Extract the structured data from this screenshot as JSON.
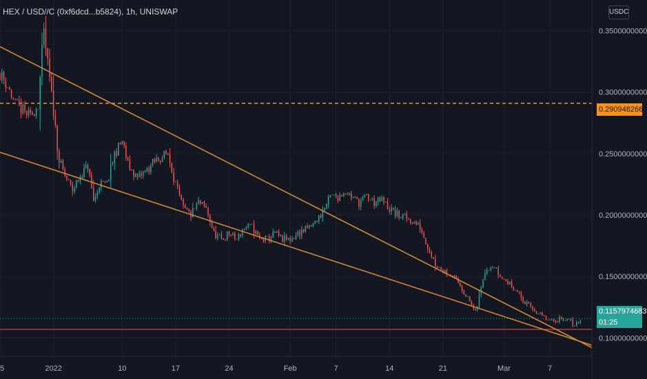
{
  "header": {
    "symbol_title": "HEX / USD//C (0xf6dcd...b5824), 1h, UNISWAP",
    "currency_button": "USDC"
  },
  "price_tags": {
    "dashed_level": "0.2909482661",
    "last_price": "0.1157974683",
    "countdown": "01:25"
  },
  "colors": {
    "background": "#131722",
    "up": "#26a69a",
    "down": "#ef5350",
    "trendline": "#d4892a",
    "dashed_level": "#f7931a",
    "grid": "#1e222d",
    "axis_text": "#b2b5be"
  },
  "chart_data": {
    "type": "candlestick",
    "y_axis": {
      "ticks": [
        {
          "value": 0.35,
          "label": "0.3500000000"
        },
        {
          "value": 0.3,
          "label": "0.3000000000"
        },
        {
          "value": 0.25,
          "label": "0.2500000000"
        },
        {
          "value": 0.2,
          "label": "0.2000000000"
        },
        {
          "value": 0.15,
          "label": "0.1500000000"
        },
        {
          "value": 0.1,
          "label": "0.1000000000"
        }
      ],
      "range": [
        0.085,
        0.375
      ]
    },
    "x_axis": {
      "ticks": [
        {
          "day": 0,
          "label": "25"
        },
        {
          "day": 7,
          "label": "2022"
        },
        {
          "day": 16,
          "label": "10"
        },
        {
          "day": 23,
          "label": "17"
        },
        {
          "day": 30,
          "label": "24"
        },
        {
          "day": 38,
          "label": "Feb"
        },
        {
          "day": 44,
          "label": "7"
        },
        {
          "day": 51,
          "label": "14"
        },
        {
          "day": 58,
          "label": "21"
        },
        {
          "day": 66,
          "label": "Mar"
        },
        {
          "day": 72,
          "label": "7"
        }
      ],
      "range": [
        0,
        77.5
      ]
    },
    "series": [
      {
        "style": "candles",
        "close_points": [
          [
            0,
            0.315
          ],
          [
            1,
            0.305
          ],
          [
            2,
            0.29
          ],
          [
            3,
            0.285
          ],
          [
            4,
            0.28
          ],
          [
            5,
            0.29
          ],
          [
            5.7,
            0.35
          ],
          [
            6.3,
            0.32
          ],
          [
            7,
            0.285
          ],
          [
            7.7,
            0.245
          ],
          [
            8.5,
            0.232
          ],
          [
            9.5,
            0.22
          ],
          [
            10.5,
            0.232
          ],
          [
            11.5,
            0.24
          ],
          [
            12.3,
            0.21
          ],
          [
            13,
            0.225
          ],
          [
            14,
            0.225
          ],
          [
            15,
            0.25
          ],
          [
            16,
            0.26
          ],
          [
            16.8,
            0.24
          ],
          [
            18,
            0.23
          ],
          [
            19,
            0.235
          ],
          [
            20.5,
            0.245
          ],
          [
            22,
            0.25
          ],
          [
            23.2,
            0.22
          ],
          [
            24,
            0.205
          ],
          [
            25,
            0.2
          ],
          [
            26,
            0.21
          ],
          [
            27,
            0.205
          ],
          [
            28,
            0.185
          ],
          [
            29,
            0.18
          ],
          [
            30,
            0.185
          ],
          [
            31,
            0.18
          ],
          [
            32,
            0.19
          ],
          [
            33,
            0.19
          ],
          [
            34,
            0.18
          ],
          [
            35,
            0.18
          ],
          [
            36,
            0.185
          ],
          [
            37,
            0.18
          ],
          [
            38,
            0.18
          ],
          [
            39,
            0.185
          ],
          [
            40,
            0.188
          ],
          [
            41,
            0.192
          ],
          [
            42,
            0.2
          ],
          [
            43.3,
            0.215
          ],
          [
            44.3,
            0.215
          ],
          [
            45.2,
            0.22
          ],
          [
            46,
            0.215
          ],
          [
            47,
            0.21
          ],
          [
            48,
            0.215
          ],
          [
            49,
            0.21
          ],
          [
            50,
            0.212
          ],
          [
            51,
            0.205
          ],
          [
            52,
            0.2
          ],
          [
            53,
            0.198
          ],
          [
            54,
            0.195
          ],
          [
            55,
            0.19
          ],
          [
            56,
            0.175
          ],
          [
            57,
            0.16
          ],
          [
            58,
            0.155
          ],
          [
            59,
            0.152
          ],
          [
            60,
            0.145
          ],
          [
            61,
            0.135
          ],
          [
            62.3,
            0.12
          ],
          [
            62.8,
            0.135
          ],
          [
            63.5,
            0.155
          ],
          [
            64.5,
            0.16
          ],
          [
            65.5,
            0.15
          ],
          [
            66.5,
            0.145
          ],
          [
            67.5,
            0.14
          ],
          [
            68.5,
            0.13
          ],
          [
            69.5,
            0.125
          ],
          [
            70.5,
            0.12
          ],
          [
            71.5,
            0.115
          ],
          [
            72.3,
            0.113
          ],
          [
            73.3,
            0.116
          ],
          [
            74.3,
            0.115
          ],
          [
            75.3,
            0.11
          ],
          [
            76,
            0.115
          ]
        ]
      }
    ],
    "trendlines": [
      {
        "from": [
          0,
          0.337
        ],
        "to": [
          77.5,
          0.092
        ]
      },
      {
        "from": [
          0,
          0.251
        ],
        "to": [
          77.5,
          0.094
        ]
      }
    ],
    "horizontal_lines": [
      {
        "value": 0.2909482661,
        "style": "dashed"
      },
      {
        "value": 0.1157974683,
        "style": "dotted"
      },
      {
        "value": 0.1069,
        "style": "solid"
      }
    ]
  }
}
